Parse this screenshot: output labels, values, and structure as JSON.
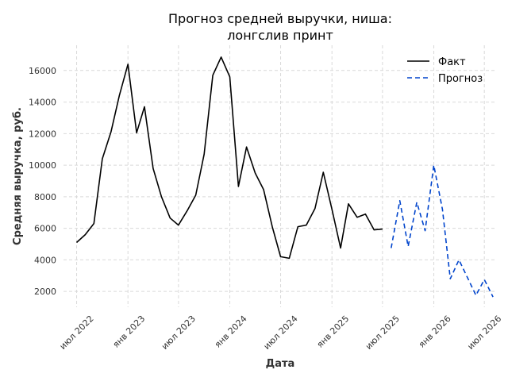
{
  "chart_data": {
    "type": "line",
    "title_lines": [
      "Прогноз средней выручки, ниша:",
      "лонгслив принт"
    ],
    "xlabel": "Дата",
    "ylabel": "Средняя выручка, руб.",
    "x_ticks": [
      {
        "label": "июл 2022",
        "date": "2022-07-01"
      },
      {
        "label": "янв 2023",
        "date": "2023-01-01"
      },
      {
        "label": "июл 2023",
        "date": "2023-07-01"
      },
      {
        "label": "янв 2024",
        "date": "2024-01-01"
      },
      {
        "label": "июл 2024",
        "date": "2024-07-01"
      },
      {
        "label": "янв 2025",
        "date": "2025-01-01"
      },
      {
        "label": "июл 2025",
        "date": "2025-07-01"
      },
      {
        "label": "янв 2026",
        "date": "2026-01-01"
      },
      {
        "label": "июл 2026",
        "date": "2026-07-01"
      }
    ],
    "y_ticks": [
      2000,
      4000,
      6000,
      8000,
      10000,
      12000,
      14000,
      16000
    ],
    "ylim": [
      1000,
      17600
    ],
    "xlim": [
      "2022-05-15",
      "2026-08-15"
    ],
    "grid": true,
    "legend_position": "top-right",
    "series": [
      {
        "name": "Факт",
        "style": "solid",
        "color": "#000000",
        "x": [
          "2022-07-01",
          "2022-08-01",
          "2022-09-01",
          "2022-10-01",
          "2022-11-01",
          "2022-12-01",
          "2023-01-01",
          "2023-02-01",
          "2023-03-01",
          "2023-04-01",
          "2023-05-01",
          "2023-06-01",
          "2023-07-01",
          "2023-08-01",
          "2023-09-01",
          "2023-10-01",
          "2023-11-01",
          "2023-12-01",
          "2024-01-01",
          "2024-02-01",
          "2024-03-01",
          "2024-04-01",
          "2024-05-01",
          "2024-06-01",
          "2024-07-01",
          "2024-08-01",
          "2024-09-01",
          "2024-10-01",
          "2024-11-01",
          "2024-12-01",
          "2025-01-01",
          "2025-02-01",
          "2025-03-01",
          "2025-04-01",
          "2025-05-01",
          "2025-06-01",
          "2025-07-01"
        ],
        "y": [
          5100,
          5600,
          6300,
          10400,
          12100,
          14400,
          16400,
          12050,
          13700,
          9800,
          8000,
          6650,
          6200,
          7100,
          8100,
          10700,
          15700,
          16850,
          15600,
          8650,
          11150,
          9500,
          8450,
          6100,
          4200,
          4100,
          6100,
          6200,
          7250,
          9550,
          7200,
          4750,
          7550,
          6700,
          6900,
          5900,
          5950
        ]
      },
      {
        "name": "Прогноз",
        "style": "dashed",
        "color": "#0044cc",
        "x": [
          "2025-08-01",
          "2025-09-01",
          "2025-10-01",
          "2025-11-01",
          "2025-12-01",
          "2026-01-01",
          "2026-02-01",
          "2026-03-01",
          "2026-04-01",
          "2026-05-01",
          "2026-06-01",
          "2026-07-01",
          "2026-08-01"
        ],
        "y": [
          4750,
          7750,
          4850,
          7650,
          5850,
          10000,
          7200,
          2800,
          4000,
          2900,
          1750,
          2750,
          1650
        ]
      }
    ]
  }
}
